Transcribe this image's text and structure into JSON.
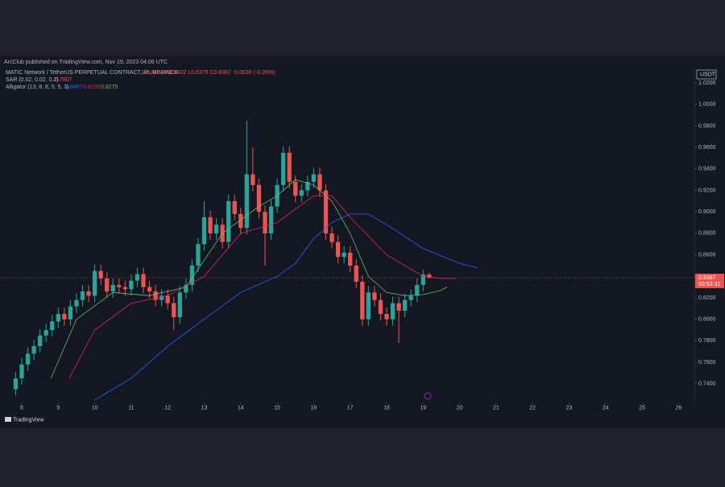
{
  "chart_data": {
    "type": "candlestick",
    "header": "ArcClub published on TradingView.com, Nov 19, 2023 04:06 UTC",
    "symbol": "MATIC Network / TetherUS PERPETUAL CONTRACT, 4h, BINANCE",
    "ohlc_legend": "O0.8417 H0.8432 L0.8379 C0.8387 -0.0030 (-0.36%)",
    "indicators": [
      {
        "label": "SAR (0.02, 0.02, 0.2)",
        "values": [
          "0.7807"
        ]
      },
      {
        "label": "Alligator (13, 8, 8, 5, 5, 3)",
        "values": [
          "0.8467",
          "0.8155",
          "0.8275"
        ]
      }
    ],
    "currency": "USDT",
    "countdown": "03:53:31",
    "brand": "TradingView",
    "up_color": "#26a69a",
    "down_color": "#ef5350",
    "x": [
      7.8333,
      8,
      8.1667,
      8.3333,
      8.5,
      8.6667,
      8.8333,
      9,
      9.1667,
      9.3333,
      9.5,
      9.6667,
      9.8333,
      10,
      10.1667,
      10.3333,
      10.5,
      10.6667,
      10.8333,
      11,
      11.1667,
      11.3333,
      11.5,
      11.6667,
      11.8333,
      12,
      12.1667,
      12.3333,
      12.5,
      12.6667,
      12.8333,
      13,
      13.1667,
      13.3333,
      13.5,
      13.6667,
      13.8333,
      14,
      14.1667,
      14.3333,
      14.5,
      14.6667,
      14.8333,
      15,
      15.1667,
      15.3333,
      15.5,
      15.6667,
      15.8333,
      16,
      16.1667,
      16.3333,
      16.5,
      16.6667,
      16.8333,
      17,
      17.1667,
      17.3333,
      17.5,
      17.6667,
      17.8333,
      18,
      18.1667,
      18.3333,
      18.5,
      18.6667,
      18.8333,
      19,
      19.1667
    ],
    "open": [
      0.735,
      0.745,
      0.758,
      0.768,
      0.775,
      0.785,
      0.79,
      0.798,
      0.805,
      0.8,
      0.812,
      0.818,
      0.826,
      0.822,
      0.845,
      0.838,
      0.826,
      0.832,
      0.83,
      0.828,
      0.836,
      0.842,
      0.83,
      0.826,
      0.818,
      0.822,
      0.815,
      0.802,
      0.825,
      0.832,
      0.85,
      0.87,
      0.895,
      0.88,
      0.888,
      0.872,
      0.91,
      0.898,
      0.885,
      0.935,
      0.925,
      0.9,
      0.88,
      0.905,
      0.925,
      0.955,
      0.928,
      0.915,
      0.92,
      0.928,
      0.935,
      0.92,
      0.88,
      0.872,
      0.858,
      0.862,
      0.85,
      0.835,
      0.8,
      0.825,
      0.818,
      0.805,
      0.8,
      0.815,
      0.808,
      0.818,
      0.822,
      0.832,
      0.8417
    ],
    "high": [
      0.751,
      0.764,
      0.774,
      0.781,
      0.791,
      0.796,
      0.804,
      0.811,
      0.811,
      0.818,
      0.824,
      0.832,
      0.832,
      0.851,
      0.851,
      0.844,
      0.838,
      0.838,
      0.836,
      0.842,
      0.848,
      0.848,
      0.836,
      0.832,
      0.828,
      0.828,
      0.821,
      0.831,
      0.838,
      0.856,
      0.876,
      0.91,
      0.901,
      0.894,
      0.894,
      0.916,
      0.916,
      0.904,
      0.985,
      0.96,
      0.931,
      0.906,
      0.911,
      0.931,
      0.961,
      0.961,
      0.934,
      0.926,
      0.934,
      0.941,
      0.941,
      0.926,
      0.886,
      0.878,
      0.868,
      0.868,
      0.856,
      0.841,
      0.831,
      0.831,
      0.824,
      0.811,
      0.821,
      0.821,
      0.824,
      0.828,
      0.838,
      0.846,
      0.8432
    ],
    "low": [
      0.729,
      0.739,
      0.752,
      0.762,
      0.769,
      0.779,
      0.784,
      0.792,
      0.794,
      0.794,
      0.806,
      0.812,
      0.816,
      0.816,
      0.832,
      0.82,
      0.82,
      0.824,
      0.822,
      0.822,
      0.83,
      0.824,
      0.82,
      0.812,
      0.812,
      0.809,
      0.79,
      0.796,
      0.819,
      0.826,
      0.844,
      0.864,
      0.874,
      0.874,
      0.866,
      0.866,
      0.892,
      0.879,
      0.879,
      0.919,
      0.894,
      0.85,
      0.874,
      0.899,
      0.919,
      0.922,
      0.909,
      0.909,
      0.914,
      0.922,
      0.914,
      0.874,
      0.866,
      0.852,
      0.852,
      0.844,
      0.829,
      0.794,
      0.794,
      0.812,
      0.799,
      0.794,
      0.794,
      0.778,
      0.802,
      0.812,
      0.816,
      0.826,
      0.8379
    ],
    "close": [
      0.745,
      0.758,
      0.768,
      0.775,
      0.785,
      0.79,
      0.798,
      0.805,
      0.8,
      0.812,
      0.818,
      0.826,
      0.822,
      0.845,
      0.838,
      0.826,
      0.832,
      0.83,
      0.828,
      0.836,
      0.842,
      0.83,
      0.826,
      0.818,
      0.822,
      0.815,
      0.802,
      0.825,
      0.832,
      0.85,
      0.87,
      0.895,
      0.88,
      0.888,
      0.872,
      0.91,
      0.898,
      0.885,
      0.935,
      0.925,
      0.9,
      0.88,
      0.905,
      0.925,
      0.955,
      0.928,
      0.915,
      0.92,
      0.928,
      0.935,
      0.92,
      0.88,
      0.872,
      0.858,
      0.862,
      0.85,
      0.835,
      0.8,
      0.825,
      0.818,
      0.805,
      0.8,
      0.815,
      0.808,
      0.818,
      0.822,
      0.832,
      0.8417,
      0.8387
    ],
    "lines": [
      {
        "color": "#2962ff",
        "x": [
          10,
          11,
          12,
          13,
          14,
          15,
          15.5,
          16,
          16.5,
          17,
          17.5,
          18,
          19,
          20,
          20.5
        ],
        "values": [
          0.725,
          0.745,
          0.775,
          0.8,
          0.825,
          0.84,
          0.852,
          0.875,
          0.89,
          0.898,
          0.898,
          0.888,
          0.866,
          0.852,
          0.848
        ]
      },
      {
        "color": "#e91e63",
        "x": [
          9.3,
          10,
          11,
          12,
          13,
          14,
          15,
          16,
          16.5,
          17,
          18,
          19,
          19.5,
          19.9
        ],
        "values": [
          0.745,
          0.79,
          0.815,
          0.822,
          0.84,
          0.88,
          0.89,
          0.915,
          0.915,
          0.895,
          0.86,
          0.84,
          0.838,
          0.838
        ]
      },
      {
        "color": "#66bb6a",
        "x": [
          8.8,
          9.5,
          10.5,
          11.5,
          12.5,
          13.5,
          14.5,
          15,
          15.5,
          16,
          16.5,
          17,
          17.5,
          18,
          18.5,
          19,
          19.5,
          19.65
        ],
        "values": [
          0.745,
          0.8,
          0.825,
          0.822,
          0.83,
          0.88,
          0.905,
          0.915,
          0.93,
          0.925,
          0.91,
          0.88,
          0.84,
          0.825,
          0.822,
          0.823,
          0.827,
          0.83
        ]
      }
    ],
    "ylim": [
      0.7226,
      1.0335
    ],
    "yticks": [
      {
        "value": 0.74,
        "label": "0.7400"
      },
      {
        "value": 0.76,
        "label": "0.7600"
      },
      {
        "value": 0.78,
        "label": "0.7800"
      },
      {
        "value": 0.8,
        "label": "0.8000"
      },
      {
        "value": 0.82,
        "label": "0.8200"
      },
      {
        "value": 0.84,
        "label": "0.8400"
      },
      {
        "value": 0.86,
        "label": "0.8600"
      },
      {
        "value": 0.88,
        "label": "0.8800"
      },
      {
        "value": 0.9,
        "label": "0.9000"
      },
      {
        "value": 0.92,
        "label": "0.9200"
      },
      {
        "value": 0.94,
        "label": "0.9400"
      },
      {
        "value": 0.96,
        "label": "0.9600"
      },
      {
        "value": 0.98,
        "label": "0.9800"
      },
      {
        "value": 1,
        "label": "1.0000"
      },
      {
        "value": 1.02,
        "label": "1.0200"
      }
    ],
    "xlim": [
      7.404,
      26.433
    ],
    "xticks": [
      8,
      9,
      10,
      11,
      12,
      13,
      14,
      15,
      16,
      17,
      18,
      19,
      20,
      21,
      22,
      23,
      24,
      25,
      26
    ]
  }
}
